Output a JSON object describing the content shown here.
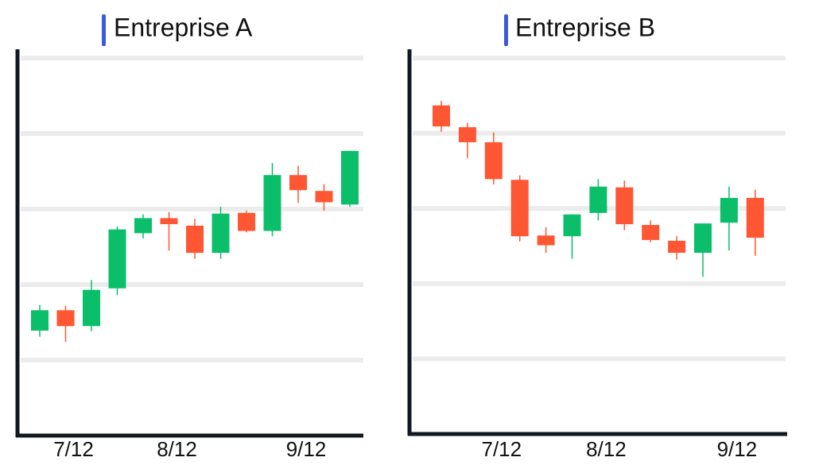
{
  "chart_data": [
    {
      "type": "candlestick",
      "title": "Entreprise A",
      "categories": [
        null,
        "7/12",
        null,
        null,
        null,
        "8/12",
        null,
        null,
        null,
        null,
        "9/12",
        null,
        null
      ],
      "open": [
        1.39,
        1.66,
        1.45,
        1.95,
        2.68,
        2.88,
        2.78,
        2.42,
        2.95,
        2.71,
        3.45,
        3.24,
        3.06
      ],
      "high": [
        1.73,
        1.72,
        2.06,
        2.77,
        2.93,
        2.96,
        2.87,
        3.03,
        2.98,
        3.61,
        3.57,
        3.33,
        3.77
      ],
      "low": [
        1.31,
        1.24,
        1.38,
        1.86,
        2.61,
        2.45,
        2.34,
        2.34,
        2.69,
        2.64,
        3.08,
        2.98,
        3.03
      ],
      "close": [
        1.66,
        1.45,
        1.93,
        2.73,
        2.88,
        2.8,
        2.42,
        2.94,
        2.71,
        3.45,
        3.25,
        3.09,
        3.77
      ],
      "ylim": [
        0,
        5
      ],
      "yticks": [
        1,
        2,
        3,
        4,
        5
      ],
      "grid": true,
      "up_color": "#0bbf6a",
      "down_color": "#ff5733"
    },
    {
      "type": "candlestick",
      "title": "Entreprise B",
      "categories": [
        null,
        null,
        "7/12",
        null,
        null,
        null,
        "8/12",
        null,
        null,
        null,
        null,
        "9/12",
        null
      ],
      "open": [
        4.37,
        4.08,
        3.88,
        3.38,
        2.64,
        2.63,
        2.94,
        3.28,
        2.78,
        2.57,
        2.41,
        2.81,
        3.14
      ],
      "high": [
        4.43,
        4.14,
        4.01,
        3.44,
        2.75,
        2.92,
        3.39,
        3.37,
        2.84,
        2.63,
        2.8,
        3.29,
        3.25
      ],
      "low": [
        4.02,
        3.67,
        3.32,
        2.56,
        2.41,
        2.33,
        2.84,
        2.71,
        2.55,
        2.32,
        2.09,
        2.44,
        2.37
      ],
      "close": [
        4.09,
        3.88,
        3.39,
        2.63,
        2.51,
        2.92,
        3.29,
        2.79,
        2.58,
        2.41,
        2.8,
        3.14,
        2.61
      ],
      "ylim": [
        0,
        5
      ],
      "yticks": [
        1,
        2,
        3,
        4,
        5
      ],
      "grid": true,
      "up_color": "#0bbf6a",
      "down_color": "#ff5733"
    }
  ]
}
